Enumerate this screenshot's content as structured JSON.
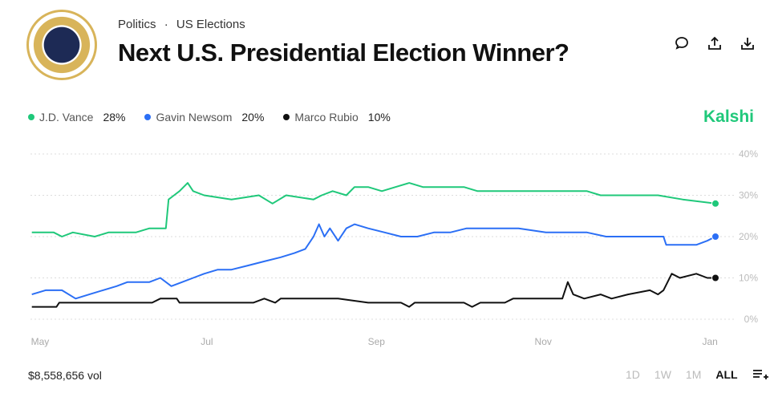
{
  "header": {
    "category": "Politics",
    "subcategory": "US Elections",
    "separator": "·",
    "title": "Next U.S. Presidential Election Winner?"
  },
  "icons": [
    "comment-icon",
    "share-icon",
    "download-icon"
  ],
  "brand": "Kalshi",
  "footer": {
    "volume": "$8,558,656 vol",
    "ranges": [
      "1D",
      "1W",
      "1M",
      "ALL"
    ],
    "active_range": "ALL"
  },
  "chart_data": {
    "type": "line",
    "x_unit": "days since May 1",
    "xlim": [
      -3.5,
      247
    ],
    "ylim": [
      0,
      40
    ],
    "yticks": [
      0,
      10,
      20,
      30,
      40
    ],
    "ytick_labels": [
      "0%",
      "10%",
      "20%",
      "30%",
      "40%"
    ],
    "xticks": [
      0,
      61,
      123,
      184,
      245
    ],
    "xtick_labels": [
      "May",
      "Jul",
      "Sep",
      "Nov",
      "Jan"
    ],
    "grid": true,
    "legend_position": "top-left",
    "series": [
      {
        "name": "J.D. Vance",
        "label": "28%",
        "color": "#1fc87a",
        "points": [
          [
            -3,
            21
          ],
          [
            5,
            21
          ],
          [
            8,
            20
          ],
          [
            12,
            21
          ],
          [
            20,
            20
          ],
          [
            25,
            21
          ],
          [
            35,
            21
          ],
          [
            40,
            22
          ],
          [
            46,
            22
          ],
          [
            47,
            29
          ],
          [
            49,
            30
          ],
          [
            51,
            31
          ],
          [
            54,
            33
          ],
          [
            56,
            31
          ],
          [
            60,
            30
          ],
          [
            70,
            29
          ],
          [
            80,
            30
          ],
          [
            85,
            28
          ],
          [
            90,
            30
          ],
          [
            100,
            29
          ],
          [
            103,
            30
          ],
          [
            107,
            31
          ],
          [
            112,
            30
          ],
          [
            115,
            32
          ],
          [
            120,
            32
          ],
          [
            125,
            31
          ],
          [
            130,
            32
          ],
          [
            135,
            33
          ],
          [
            140,
            32
          ],
          [
            150,
            32
          ],
          [
            155,
            32
          ],
          [
            160,
            31
          ],
          [
            170,
            31
          ],
          [
            176,
            31
          ],
          [
            190,
            31
          ],
          [
            200,
            31
          ],
          [
            205,
            30
          ],
          [
            215,
            30
          ],
          [
            226,
            30
          ],
          [
            235,
            29
          ],
          [
            247,
            28
          ]
        ]
      },
      {
        "name": "Gavin Newsom",
        "label": "20%",
        "color": "#2b6ff5",
        "points": [
          [
            -3,
            6
          ],
          [
            2,
            7
          ],
          [
            8,
            7
          ],
          [
            13,
            5
          ],
          [
            18,
            6
          ],
          [
            23,
            7
          ],
          [
            28,
            8
          ],
          [
            32,
            9
          ],
          [
            40,
            9
          ],
          [
            44,
            10
          ],
          [
            48,
            8
          ],
          [
            52,
            9
          ],
          [
            56,
            10
          ],
          [
            60,
            11
          ],
          [
            65,
            12
          ],
          [
            70,
            12
          ],
          [
            76,
            13
          ],
          [
            82,
            14
          ],
          [
            88,
            15
          ],
          [
            93,
            16
          ],
          [
            97,
            17
          ],
          [
            100,
            20
          ],
          [
            102,
            23
          ],
          [
            104,
            20
          ],
          [
            106,
            22
          ],
          [
            109,
            19
          ],
          [
            112,
            22
          ],
          [
            115,
            23
          ],
          [
            120,
            22
          ],
          [
            126,
            21
          ],
          [
            132,
            20
          ],
          [
            138,
            20
          ],
          [
            144,
            21
          ],
          [
            150,
            21
          ],
          [
            156,
            22
          ],
          [
            161,
            22
          ],
          [
            175,
            22
          ],
          [
            185,
            21
          ],
          [
            191,
            21
          ],
          [
            200,
            21
          ],
          [
            207,
            20
          ],
          [
            214,
            20
          ],
          [
            228,
            20
          ],
          [
            229,
            18
          ],
          [
            240,
            18
          ],
          [
            244,
            19
          ],
          [
            247,
            20
          ]
        ]
      },
      {
        "name": "Marco Rubio",
        "label": "10%",
        "color": "#111111",
        "points": [
          [
            -3,
            3
          ],
          [
            6,
            3
          ],
          [
            7,
            4
          ],
          [
            41,
            4
          ],
          [
            44,
            5
          ],
          [
            50,
            5
          ],
          [
            51,
            4
          ],
          [
            62,
            4
          ],
          [
            65,
            4
          ],
          [
            78,
            4
          ],
          [
            82,
            5
          ],
          [
            86,
            4
          ],
          [
            88,
            5
          ],
          [
            105,
            5
          ],
          [
            109,
            5
          ],
          [
            120,
            4
          ],
          [
            132,
            4
          ],
          [
            135,
            3
          ],
          [
            137,
            4
          ],
          [
            155,
            4
          ],
          [
            158,
            3
          ],
          [
            161,
            4
          ],
          [
            170,
            4
          ],
          [
            173,
            5
          ],
          [
            191,
            5
          ],
          [
            193,
            9
          ],
          [
            195,
            6
          ],
          [
            199,
            5
          ],
          [
            205,
            6
          ],
          [
            209,
            5
          ],
          [
            215,
            6
          ],
          [
            223,
            7
          ],
          [
            226,
            6
          ],
          [
            228,
            7
          ],
          [
            231,
            11
          ],
          [
            234,
            10
          ],
          [
            240,
            11
          ],
          [
            244,
            10
          ],
          [
            247,
            10
          ]
        ]
      }
    ]
  }
}
